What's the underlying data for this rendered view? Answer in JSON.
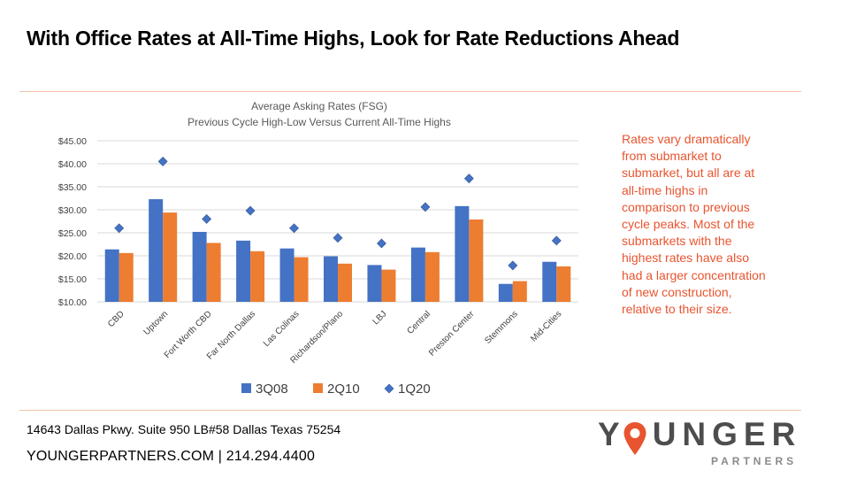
{
  "slide": {
    "title": "With Office Rates at All-Time Highs, Look for Rate Reductions Ahead",
    "note": "Rates vary dramatically from submarket to submarket, but all are at all-time highs in comparison to previous cycle peaks.  Most of the submarkets with the highest rates have also had a larger concentration of new construction, relative to their size.",
    "address": "14643 Dallas Pkwy. Suite 950 LB#58 Dallas Texas 75254",
    "contact": "YOUNGERPARTNERS.COM | 214.294.4400",
    "logo": {
      "word_left": "Y",
      "word_right": "UNGER",
      "sub": "PARTNERS"
    }
  },
  "colors": {
    "q308": "#4472c4",
    "q210": "#ed7d31",
    "q120": "#4472c4",
    "accent": "#e8542f",
    "rule": "#f4c4a8"
  },
  "chart_data": {
    "type": "bar",
    "title": "Average Asking Rates (FSG)",
    "subtitle": "Previous Cycle High-Low Versus Current All-Time Highs",
    "categories": [
      "CBD",
      "Uptown",
      "Fort Worth CBD",
      "Far North Dallas",
      "Las Colinas",
      "Richardson/Plano",
      "LBJ",
      "Central",
      "Preston Center",
      "Stemmons",
      "Mid-Cities"
    ],
    "series": [
      {
        "name": "3Q08",
        "type": "bar",
        "values": [
          21.4,
          32.3,
          25.2,
          23.3,
          21.6,
          19.9,
          18.0,
          21.8,
          30.8,
          13.9,
          18.7
        ]
      },
      {
        "name": "2Q10",
        "type": "bar",
        "values": [
          20.6,
          29.4,
          22.8,
          21.0,
          19.7,
          18.3,
          17.0,
          20.8,
          27.9,
          14.5,
          17.7
        ]
      },
      {
        "name": "1Q20",
        "type": "marker",
        "values": [
          26.0,
          40.5,
          28.0,
          29.8,
          26.0,
          23.9,
          22.7,
          30.6,
          36.8,
          17.9,
          23.3
        ]
      }
    ],
    "yticks": [
      "$10.00",
      "$15.00",
      "$20.00",
      "$25.00",
      "$30.00",
      "$35.00",
      "$40.00",
      "$45.00"
    ],
    "ylim": [
      10,
      45
    ],
    "grid": true,
    "legend": "bottom"
  }
}
